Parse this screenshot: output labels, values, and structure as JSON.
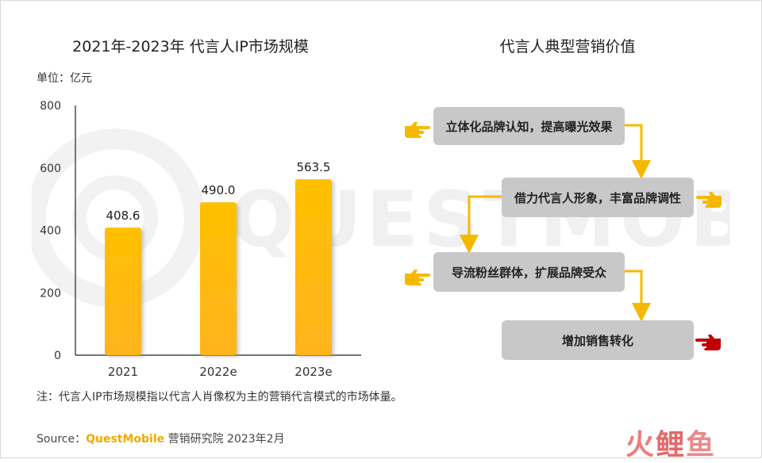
{
  "chart": {
    "title": "2021年-2023年 代言人IP市场规模",
    "unit": "单位：亿元",
    "note": "注：代言人IP市场规模指以代言人肖像权为主的营销代言模式的市场体量。"
  },
  "chart_data": {
    "type": "bar",
    "title": "2021年-2023年 代言人IP市场规模",
    "categories": [
      "2021",
      "2022e",
      "2023e"
    ],
    "values": [
      408.6,
      490.0,
      563.5
    ],
    "value_labels": [
      "408.6",
      "490.0",
      "563.5"
    ],
    "ylabel": "单位：亿元",
    "xlabel": "",
    "ylim": [
      0,
      800
    ],
    "yticks": [
      0,
      200,
      400,
      600,
      800
    ],
    "grid": false,
    "bar_color": "#ffc000",
    "bar_color_bottom": "#ffb41e"
  },
  "flow": {
    "title": "代言人典型营销价值",
    "steps": [
      "立体化品牌认知，提高曝光效果",
      "借力代言人形象，丰富品牌调性",
      "导流粉丝群体，扩展品牌受众",
      "增加销售转化"
    ],
    "arrow_color": "#f5b800",
    "hand_colors": [
      "#f5b800",
      "#f5b800",
      "#f5b800",
      "#c00000"
    ]
  },
  "footer": {
    "source_prefix": "Source：",
    "source_brand": "QuestMobile",
    "source_rest": " 营销研究院 2023年2月",
    "logo": [
      "火",
      "鲤",
      "鱼"
    ]
  },
  "watermark": "QUESTMOBILE"
}
